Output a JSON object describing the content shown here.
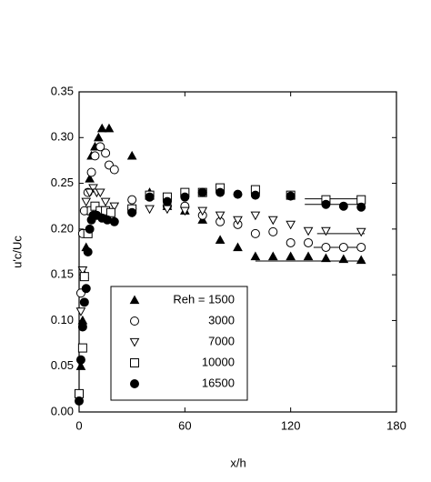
{
  "chart_data": {
    "type": "scatter",
    "x_label": "x/h",
    "y_label": "u'c/Uc",
    "xlim": [
      0,
      180
    ],
    "ylim": [
      0,
      0.35
    ],
    "xticks": [
      0,
      60,
      120,
      180
    ],
    "yticks": [
      {
        "value": 0,
        "label": "0.00"
      },
      0.05,
      {
        "value": 0.1,
        "label": "0.10"
      },
      0.15,
      {
        "value": 0.2,
        "label": "0.20"
      },
      0.25,
      {
        "value": 0.3,
        "label": "0.30"
      },
      0.35
    ],
    "legend": "lower-left",
    "series": [
      {
        "name": "Reh = 1500",
        "marker": "triangle-filled",
        "color": "#000000",
        "x": [
          0,
          1,
          2,
          3,
          4,
          6,
          7,
          9,
          11,
          13,
          17,
          30,
          40,
          50,
          60,
          70,
          80,
          90,
          100,
          110,
          120,
          130,
          140,
          150,
          160
        ],
        "values": [
          0.02,
          0.05,
          0.1,
          0.15,
          0.18,
          0.255,
          0.28,
          0.29,
          0.3,
          0.31,
          0.31,
          0.28,
          0.24,
          0.225,
          0.22,
          0.21,
          0.188,
          0.18,
          0.17,
          0.17,
          0.17,
          0.17,
          0.168,
          0.167,
          0.166
        ],
        "asymptote": 0.165,
        "asymptote_x": [
          100,
          162
        ]
      },
      {
        "name": "3000",
        "marker": "circle-open",
        "color": "#000000",
        "x": [
          1,
          2,
          3,
          5,
          7,
          9,
          12,
          15,
          17,
          20,
          30,
          40,
          50,
          60,
          70,
          80,
          90,
          100,
          110,
          120,
          130,
          140,
          150,
          160
        ],
        "values": [
          0.13,
          0.195,
          0.22,
          0.24,
          0.262,
          0.28,
          0.29,
          0.283,
          0.27,
          0.265,
          0.232,
          0.235,
          0.225,
          0.225,
          0.215,
          0.208,
          0.205,
          0.195,
          0.197,
          0.185,
          0.185,
          0.18,
          0.18,
          0.18
        ],
        "asymptote": 0.18,
        "asymptote_x": [
          133,
          162
        ]
      },
      {
        "name": "7000",
        "marker": "triangle-down-open",
        "color": "#000000",
        "x": [
          0,
          1,
          2,
          4,
          6,
          8,
          10,
          12,
          15,
          20,
          30,
          40,
          50,
          60,
          70,
          80,
          90,
          100,
          110,
          120,
          130,
          140,
          160
        ],
        "values": [
          0.02,
          0.11,
          0.155,
          0.23,
          0.24,
          0.245,
          0.24,
          0.24,
          0.23,
          0.225,
          0.218,
          0.222,
          0.222,
          0.22,
          0.22,
          0.215,
          0.21,
          0.215,
          0.21,
          0.205,
          0.198,
          0.198,
          0.197
        ],
        "asymptote": 0.195,
        "asymptote_x": [
          135,
          162
        ]
      },
      {
        "name": "10000",
        "marker": "square-open",
        "color": "#000000",
        "x": [
          0,
          2,
          3,
          5,
          7,
          9,
          12,
          15,
          18,
          30,
          40,
          50,
          60,
          70,
          80,
          100,
          120,
          140,
          160
        ],
        "values": [
          0.02,
          0.07,
          0.148,
          0.195,
          0.22,
          0.225,
          0.22,
          0.22,
          0.218,
          0.222,
          0.237,
          0.235,
          0.24,
          0.24,
          0.245,
          0.243,
          0.237,
          0.232,
          0.232
        ],
        "asymptote": 0.233,
        "asymptote_x": [
          128,
          162
        ]
      },
      {
        "name": "16500",
        "marker": "circle-filled",
        "color": "#000000",
        "x": [
          0,
          1,
          2,
          3,
          4,
          5,
          6,
          7,
          8,
          10,
          13,
          16,
          20,
          30,
          40,
          50,
          60,
          70,
          80,
          90,
          100,
          120,
          140,
          150,
          160
        ],
        "values": [
          0.012,
          0.057,
          0.093,
          0.12,
          0.135,
          0.175,
          0.2,
          0.21,
          0.215,
          0.215,
          0.212,
          0.21,
          0.208,
          0.218,
          0.235,
          0.23,
          0.235,
          0.24,
          0.24,
          0.238,
          0.237,
          0.236,
          0.227,
          0.225,
          0.224
        ],
        "asymptote": 0.227,
        "asymptote_x": [
          128,
          162
        ]
      }
    ]
  }
}
